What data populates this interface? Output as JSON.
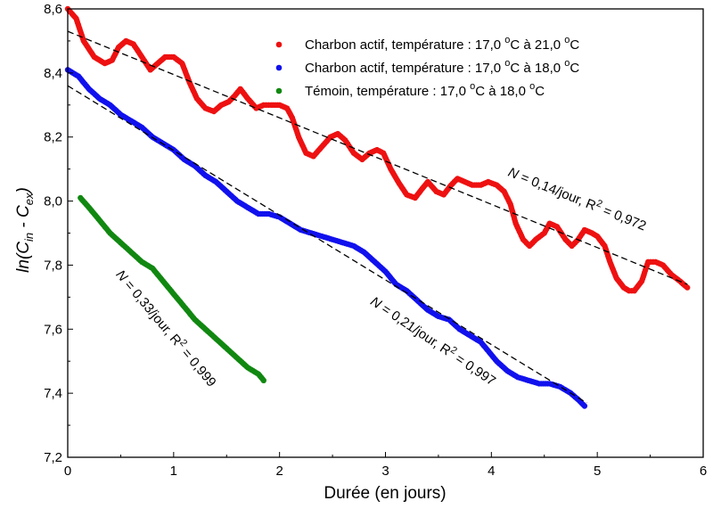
{
  "chart_data": {
    "type": "scatter",
    "title": "",
    "xlabel": "Durée (en jours)",
    "ylabel": {
      "main": "ln(C",
      "sub1": "in",
      "mid": " - C",
      "sub2": "ex",
      "end": ")"
    },
    "xlim": [
      0,
      6
    ],
    "ylim": [
      7.2,
      8.6
    ],
    "xticks": [
      0,
      1,
      2,
      3,
      4,
      5,
      6
    ],
    "xtick_labels": [
      "0",
      "1",
      "2",
      "3",
      "4",
      "5",
      "6"
    ],
    "yticks": [
      7.2,
      7.4,
      7.6,
      7.8,
      8.0,
      8.2,
      8.4,
      8.6
    ],
    "ytick_labels": [
      "7,2",
      "7,4",
      "7,6",
      "7,8",
      "8,0",
      "8,2",
      "8,4",
      "8,6"
    ],
    "legend_position": "top-right",
    "series": [
      {
        "name": "Charbon actif, température : 17,0 °C à 21,0 °C",
        "legend": {
          "pre": "Charbon actif, température : 17,0 ",
          "sup1": "o",
          "mid": "C à 21,0 ",
          "sup2": "o",
          "post": "C"
        },
        "color": "#ee1111",
        "points": [
          [
            0.0,
            8.6
          ],
          [
            0.08,
            8.57
          ],
          [
            0.15,
            8.5
          ],
          [
            0.25,
            8.45
          ],
          [
            0.35,
            8.43
          ],
          [
            0.42,
            8.44
          ],
          [
            0.48,
            8.48
          ],
          [
            0.55,
            8.5
          ],
          [
            0.62,
            8.49
          ],
          [
            0.7,
            8.45
          ],
          [
            0.78,
            8.41
          ],
          [
            0.85,
            8.43
          ],
          [
            0.92,
            8.45
          ],
          [
            1.0,
            8.45
          ],
          [
            1.08,
            8.43
          ],
          [
            1.15,
            8.37
          ],
          [
            1.22,
            8.32
          ],
          [
            1.3,
            8.29
          ],
          [
            1.38,
            8.28
          ],
          [
            1.45,
            8.3
          ],
          [
            1.52,
            8.31
          ],
          [
            1.58,
            8.33
          ],
          [
            1.63,
            8.35
          ],
          [
            1.7,
            8.32
          ],
          [
            1.78,
            8.29
          ],
          [
            1.85,
            8.3
          ],
          [
            1.92,
            8.3
          ],
          [
            2.0,
            8.3
          ],
          [
            2.07,
            8.29
          ],
          [
            2.12,
            8.26
          ],
          [
            2.18,
            8.2
          ],
          [
            2.25,
            8.15
          ],
          [
            2.32,
            8.14
          ],
          [
            2.4,
            8.17
          ],
          [
            2.48,
            8.2
          ],
          [
            2.55,
            8.21
          ],
          [
            2.62,
            8.19
          ],
          [
            2.7,
            8.15
          ],
          [
            2.78,
            8.13
          ],
          [
            2.85,
            8.15
          ],
          [
            2.92,
            8.16
          ],
          [
            2.98,
            8.15
          ],
          [
            3.05,
            8.1
          ],
          [
            3.12,
            8.06
          ],
          [
            3.2,
            8.02
          ],
          [
            3.28,
            8.01
          ],
          [
            3.35,
            8.04
          ],
          [
            3.4,
            8.06
          ],
          [
            3.48,
            8.03
          ],
          [
            3.55,
            8.02
          ],
          [
            3.62,
            8.05
          ],
          [
            3.68,
            8.07
          ],
          [
            3.75,
            8.06
          ],
          [
            3.82,
            8.05
          ],
          [
            3.9,
            8.05
          ],
          [
            3.97,
            8.06
          ],
          [
            4.05,
            8.05
          ],
          [
            4.12,
            8.03
          ],
          [
            4.18,
            7.99
          ],
          [
            4.23,
            7.93
          ],
          [
            4.3,
            7.88
          ],
          [
            4.36,
            7.86
          ],
          [
            4.42,
            7.88
          ],
          [
            4.5,
            7.9
          ],
          [
            4.55,
            7.93
          ],
          [
            4.62,
            7.92
          ],
          [
            4.7,
            7.88
          ],
          [
            4.76,
            7.86
          ],
          [
            4.82,
            7.88
          ],
          [
            4.88,
            7.91
          ],
          [
            4.95,
            7.9
          ],
          [
            5.0,
            7.89
          ],
          [
            5.07,
            7.86
          ],
          [
            5.12,
            7.81
          ],
          [
            5.18,
            7.76
          ],
          [
            5.25,
            7.73
          ],
          [
            5.3,
            7.72
          ],
          [
            5.35,
            7.72
          ],
          [
            5.42,
            7.75
          ],
          [
            5.48,
            7.81
          ],
          [
            5.55,
            7.81
          ],
          [
            5.62,
            7.8
          ],
          [
            5.7,
            7.77
          ],
          [
            5.78,
            7.75
          ],
          [
            5.85,
            7.73
          ]
        ]
      },
      {
        "name": "Charbon actif, température : 17,0 °C à 18,0 °C",
        "legend": {
          "pre": "Charbon actif, température : 17,0 ",
          "sup1": "o",
          "mid": "C à 18,0 ",
          "sup2": "o",
          "post": "C"
        },
        "color": "#1111ee",
        "points": [
          [
            0.0,
            8.41
          ],
          [
            0.1,
            8.39
          ],
          [
            0.2,
            8.35
          ],
          [
            0.3,
            8.32
          ],
          [
            0.4,
            8.3
          ],
          [
            0.5,
            8.27
          ],
          [
            0.6,
            8.25
          ],
          [
            0.7,
            8.23
          ],
          [
            0.8,
            8.2
          ],
          [
            0.9,
            8.18
          ],
          [
            1.0,
            8.16
          ],
          [
            1.1,
            8.13
          ],
          [
            1.2,
            8.11
          ],
          [
            1.3,
            8.08
          ],
          [
            1.4,
            8.06
          ],
          [
            1.5,
            8.03
          ],
          [
            1.6,
            8.0
          ],
          [
            1.7,
            7.98
          ],
          [
            1.8,
            7.96
          ],
          [
            1.9,
            7.96
          ],
          [
            2.0,
            7.95
          ],
          [
            2.1,
            7.93
          ],
          [
            2.2,
            7.91
          ],
          [
            2.3,
            7.9
          ],
          [
            2.4,
            7.89
          ],
          [
            2.5,
            7.88
          ],
          [
            2.6,
            7.87
          ],
          [
            2.7,
            7.86
          ],
          [
            2.8,
            7.84
          ],
          [
            2.9,
            7.81
          ],
          [
            3.0,
            7.78
          ],
          [
            3.1,
            7.74
          ],
          [
            3.2,
            7.72
          ],
          [
            3.3,
            7.69
          ],
          [
            3.4,
            7.66
          ],
          [
            3.5,
            7.64
          ],
          [
            3.6,
            7.63
          ],
          [
            3.7,
            7.6
          ],
          [
            3.8,
            7.58
          ],
          [
            3.9,
            7.56
          ],
          [
            4.0,
            7.52
          ],
          [
            4.05,
            7.5
          ],
          [
            4.15,
            7.47
          ],
          [
            4.25,
            7.45
          ],
          [
            4.35,
            7.44
          ],
          [
            4.45,
            7.43
          ],
          [
            4.55,
            7.43
          ],
          [
            4.65,
            7.42
          ],
          [
            4.75,
            7.4
          ],
          [
            4.82,
            7.38
          ],
          [
            4.88,
            7.36
          ]
        ]
      },
      {
        "name": "Témoin, température : 17,0 °C à 18,0 °C",
        "legend": {
          "pre": "Témoin, température : 17,0 ",
          "sup1": "o",
          "mid": "C à 18,0 ",
          "sup2": "o",
          "post": "C"
        },
        "color": "#118811",
        "points": [
          [
            0.12,
            8.01
          ],
          [
            0.2,
            7.98
          ],
          [
            0.3,
            7.94
          ],
          [
            0.4,
            7.9
          ],
          [
            0.5,
            7.87
          ],
          [
            0.6,
            7.84
          ],
          [
            0.7,
            7.81
          ],
          [
            0.8,
            7.79
          ],
          [
            0.9,
            7.75
          ],
          [
            1.0,
            7.71
          ],
          [
            1.1,
            7.67
          ],
          [
            1.2,
            7.63
          ],
          [
            1.3,
            7.6
          ],
          [
            1.4,
            7.57
          ],
          [
            1.5,
            7.54
          ],
          [
            1.6,
            7.51
          ],
          [
            1.7,
            7.48
          ],
          [
            1.8,
            7.46
          ],
          [
            1.85,
            7.44
          ]
        ]
      }
    ],
    "fit_lines": [
      {
        "x": [
          0.0,
          5.85
        ],
        "y": [
          8.53,
          7.74
        ]
      },
      {
        "x": [
          0.0,
          4.9
        ],
        "y": [
          8.36,
          7.37
        ]
      }
    ],
    "annotations": [
      {
        "n": "N",
        "rest": " = 0,14/jour, R",
        "sup": "2",
        "end": " = 0,972",
        "x": 4.15,
        "y": 8.08,
        "angle": 22
      },
      {
        "n": "N",
        "rest": " = 0,21/jour, R",
        "sup": "2",
        "end": " = 0,997",
        "x": 2.85,
        "y": 7.68,
        "angle": 34
      },
      {
        "n": "N",
        "rest": " = 0,33/jour, R",
        "sup": "2",
        "end": " = 0,999",
        "x": 0.45,
        "y": 7.77,
        "angle": 50
      }
    ]
  }
}
